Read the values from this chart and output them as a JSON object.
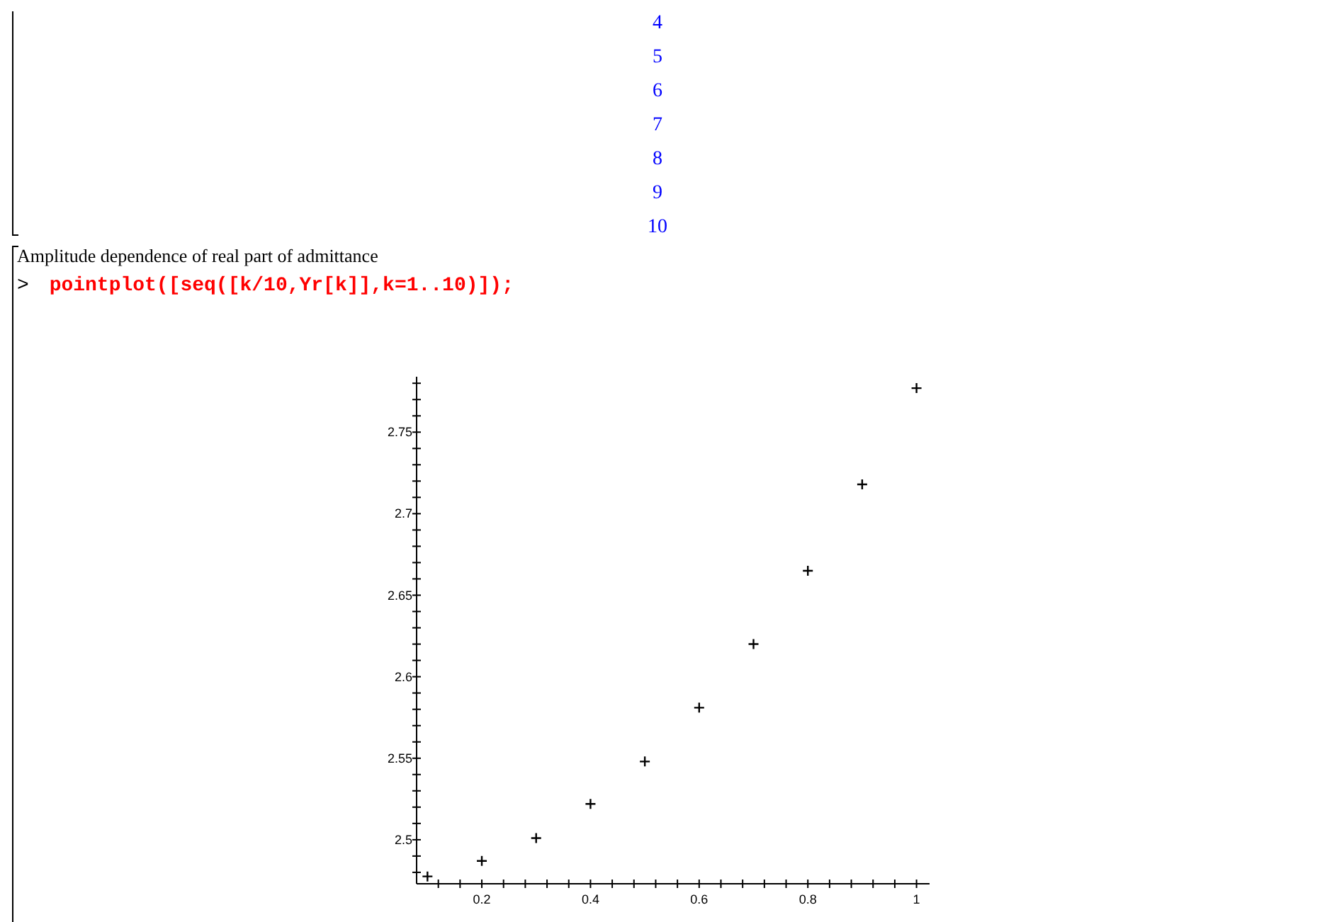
{
  "chart_data": {
    "type": "scatter",
    "marker": "cross",
    "annotations": [
      "4",
      "5",
      "6",
      "7",
      "8",
      "9",
      "10",
      "Amplitude dependence of real part of admittance",
      "> pointplot([seq([k/10,Yr[k]],k=1..10)]);"
    ],
    "x": [
      0.1,
      0.2,
      0.3,
      0.4,
      0.5,
      0.6,
      0.7,
      0.8,
      0.9,
      1.0
    ],
    "series": [
      {
        "color": "#000000",
        "values": [
          2.4775,
          2.487,
          2.501,
          2.522,
          2.548,
          2.581,
          2.62,
          2.665,
          2.718,
          2.777
        ]
      }
    ],
    "xlim": [
      0.08,
      1.024
    ],
    "ylim": [
      2.473,
      2.784
    ],
    "xticks": [
      {
        "value": 0.12,
        "label": null
      },
      {
        "value": 0.16,
        "label": null
      },
      {
        "value": 0.2,
        "label": "0.2"
      },
      {
        "value": 0.24,
        "label": null
      },
      {
        "value": 0.28,
        "label": null
      },
      {
        "value": 0.32,
        "label": null
      },
      {
        "value": 0.36,
        "label": null
      },
      {
        "value": 0.4,
        "label": "0.4"
      },
      {
        "value": 0.44,
        "label": null
      },
      {
        "value": 0.48,
        "label": null
      },
      {
        "value": 0.52,
        "label": null
      },
      {
        "value": 0.56,
        "label": null
      },
      {
        "value": 0.6,
        "label": "0.6"
      },
      {
        "value": 0.64,
        "label": null
      },
      {
        "value": 0.68,
        "label": null
      },
      {
        "value": 0.72,
        "label": null
      },
      {
        "value": 0.76,
        "label": null
      },
      {
        "value": 0.8,
        "label": "0.8"
      },
      {
        "value": 0.84,
        "label": null
      },
      {
        "value": 0.88,
        "label": null
      },
      {
        "value": 0.92,
        "label": null
      },
      {
        "value": 0.96,
        "label": null
      },
      {
        "value": 1,
        "label": "1"
      }
    ],
    "yticks": [
      {
        "value": 2.48,
        "label": null
      },
      {
        "value": 2.49,
        "label": null
      },
      {
        "value": 2.5,
        "label": "2.5"
      },
      {
        "value": 2.51,
        "label": null
      },
      {
        "value": 2.52,
        "label": null
      },
      {
        "value": 2.53,
        "label": null
      },
      {
        "value": 2.54,
        "label": null
      },
      {
        "value": 2.55,
        "label": "2.55"
      },
      {
        "value": 2.56,
        "label": null
      },
      {
        "value": 2.57,
        "label": null
      },
      {
        "value": 2.58,
        "label": null
      },
      {
        "value": 2.59,
        "label": null
      },
      {
        "value": 2.6,
        "label": "2.6"
      },
      {
        "value": 2.61,
        "label": null
      },
      {
        "value": 2.62,
        "label": null
      },
      {
        "value": 2.63,
        "label": null
      },
      {
        "value": 2.64,
        "label": null
      },
      {
        "value": 2.65,
        "label": "2.65"
      },
      {
        "value": 2.66,
        "label": null
      },
      {
        "value": 2.67,
        "label": null
      },
      {
        "value": 2.68,
        "label": null
      },
      {
        "value": 2.69,
        "label": null
      },
      {
        "value": 2.7,
        "label": "2.7"
      },
      {
        "value": 2.71,
        "label": null
      },
      {
        "value": 2.72,
        "label": null
      },
      {
        "value": 2.73,
        "label": null
      },
      {
        "value": 2.74,
        "label": null
      },
      {
        "value": 2.75,
        "label": "2.75"
      },
      {
        "value": 2.76,
        "label": null
      },
      {
        "value": 2.77,
        "label": null
      },
      {
        "value": 2.78,
        "label": null
      }
    ]
  }
}
